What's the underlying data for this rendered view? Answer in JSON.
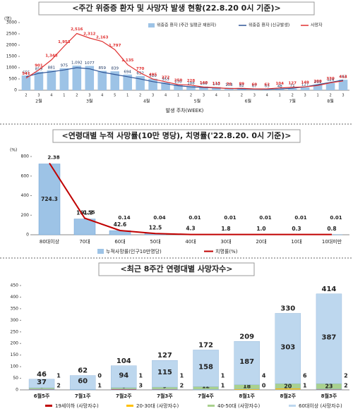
{
  "chart_data": [
    {
      "type": "combo",
      "title": "<주간 위중증 환자 및 사망자 발생 현황(22.8.20 0시 기준)>",
      "y_unit": "(명)",
      "xlabel": "발생 주차(WEEK)",
      "ylim": [
        0,
        3000
      ],
      "yticks": [
        0,
        500,
        1000,
        1500,
        2000,
        2500,
        3000
      ],
      "groups": [
        {
          "name": "2월",
          "categories": [
            "2",
            "3",
            "4"
          ]
        },
        {
          "name": "3월",
          "categories": [
            "1",
            "2",
            "3",
            "4",
            "5"
          ]
        },
        {
          "name": "4월",
          "categories": [
            "1",
            "2",
            "3",
            "4"
          ]
        },
        {
          "name": "5월",
          "categories": [
            "1",
            "2",
            "3",
            "4"
          ]
        },
        {
          "name": "6월",
          "categories": [
            "1",
            "2",
            "3",
            "4"
          ]
        },
        {
          "name": "7월",
          "categories": [
            "1",
            "2",
            "3"
          ]
        },
        {
          "name": "8월",
          "categories": [
            "1",
            "2",
            "3"
          ]
        }
      ],
      "series": [
        {
          "name": "위중증 환자 (주간 일평균 재원자)",
          "type": "bar",
          "color": "#9dc3e6",
          "values": [
            655,
            819,
            881,
            975,
            1092,
            1077,
            859,
            839,
            694,
            632,
            510,
            353,
            250,
            188,
            166,
            140,
            103,
            82,
            67,
            63,
            48,
            71,
            127,
            239,
            324,
            463
          ],
          "value_labels": [
            "655",
            "819",
            "881",
            "975",
            "1,092",
            "1077",
            "859",
            "839",
            "694",
            "632",
            "510",
            "353",
            "250",
            "188",
            "166",
            "140",
            "103",
            "82",
            "67",
            "63",
            "48",
            "71",
            "127",
            "239",
            "324",
            "463"
          ]
        },
        {
          "name": "위중증 환자 (신규발생)",
          "type": "line",
          "color": "#2f5597",
          "values": [
            600,
            750,
            820,
            900,
            1000,
            950,
            800,
            700,
            600,
            500,
            380,
            290,
            200,
            150,
            120,
            100,
            80,
            60,
            50,
            45,
            55,
            90,
            150,
            250,
            350,
            450
          ]
        },
        {
          "name": "사망자",
          "type": "line",
          "color": "#e03030",
          "values": [
            541,
            901,
            1348,
            1953,
            2516,
            2312,
            2163,
            1797,
            1135,
            770,
            495,
            372,
            250,
            228,
            140,
            113,
            76,
            89,
            60,
            62,
            104,
            127,
            149,
            209,
            330,
            414
          ],
          "value_labels": [
            "541",
            "901",
            "1,348",
            "1,953",
            "2,516",
            "2,312",
            "2,163",
            "1,797",
            "1,135",
            "770",
            "495",
            "372",
            "250",
            "228",
            "140",
            "113",
            "76",
            "89",
            "60",
            "62",
            "104",
            "127",
            "149",
            "209",
            "330",
            "414"
          ]
        }
      ]
    },
    {
      "type": "bar_line",
      "title": "<연령대별 누적 사망률(10만 명당), 치명률('22.8.20. 0시 기준)>",
      "y_unit": "(%)",
      "categories": [
        "80대이상",
        "70대",
        "60대",
        "50대",
        "40대",
        "30대",
        "20대",
        "10대",
        "10대미만"
      ],
      "ylim": [
        0,
        800
      ],
      "yticks": [
        0,
        200,
        400,
        600,
        800
      ],
      "y2lim": [
        0,
        2.6
      ],
      "series": [
        {
          "name": "누적사망률(인구10만명당)",
          "type": "bar",
          "color": "#9dc3e6",
          "values": [
            724.3,
            161.3,
            42.6,
            12.5,
            4.3,
            1.8,
            1.0,
            0.3,
            0.8
          ],
          "value_labels": [
            "724.3",
            "161.3",
            "42.6",
            "12.5",
            "4.3",
            "1.8",
            "1.0",
            "0.3",
            "0.8"
          ]
        },
        {
          "name": "치명률(%)",
          "type": "line",
          "axis": "y2",
          "color": "#c00000",
          "values": [
            2.38,
            0.55,
            0.14,
            0.04,
            0.01,
            0.01,
            0.01,
            0.01,
            0.01
          ]
        }
      ]
    },
    {
      "type": "stacked_bar",
      "title": "<최근 8주간 연령대별 사망자수>",
      "categories": [
        "6월5주",
        "7월1주",
        "7월2주",
        "7월3주",
        "7월4주",
        "8월1주",
        "8월2주",
        "8월3주"
      ],
      "ylim": [
        0,
        450
      ],
      "yticks": [
        0,
        50,
        100,
        150,
        200,
        250,
        300,
        350,
        400,
        450
      ],
      "totals": [
        46,
        62,
        104,
        127,
        172,
        209,
        330,
        414
      ],
      "series": [
        {
          "name": "19세이하 (사망자수)",
          "color": "#c00000",
          "values": [
            2,
            1,
            3,
            2,
            1,
            0,
            1,
            2
          ]
        },
        {
          "name": "20-30대 (사망자수)",
          "color": "#ffc000",
          "values": [
            1,
            0,
            1,
            1,
            1,
            4,
            6,
            2
          ]
        },
        {
          "name": "40-50대 (사망자수)",
          "color": "#a9d18e",
          "values": [
            6,
            1,
            6,
            9,
            12,
            18,
            20,
            23
          ]
        },
        {
          "name": "60대이상 (사망자수)",
          "color": "#bdd7ee",
          "values": [
            37,
            60,
            94,
            115,
            158,
            187,
            303,
            387
          ]
        }
      ]
    }
  ]
}
